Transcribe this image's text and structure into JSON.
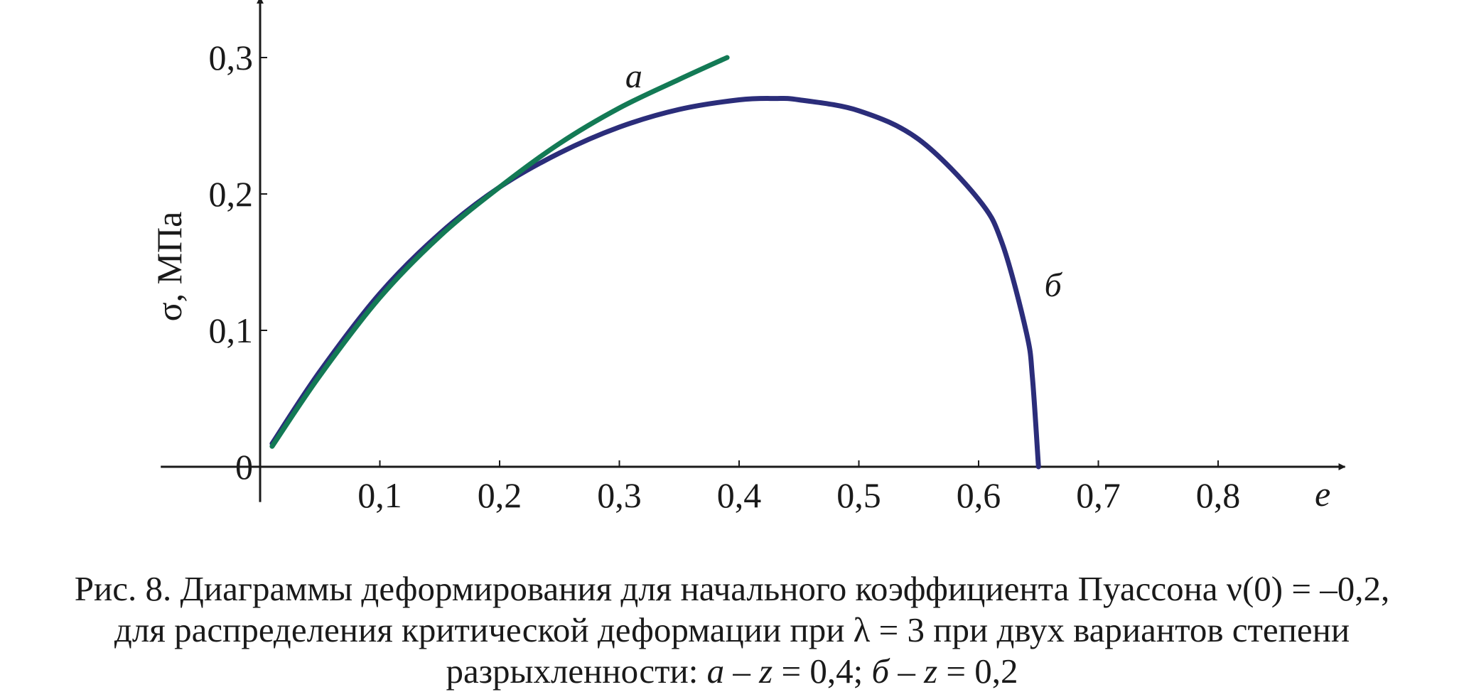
{
  "chart_data": {
    "type": "line",
    "xlabel": "e",
    "ylabel": "σ, МПа",
    "xlim": [
      -0.08,
      0.9
    ],
    "ylim": [
      -0.03,
      0.34
    ],
    "x_ticks": [
      0.1,
      0.2,
      0.3,
      0.4,
      0.5,
      0.6,
      0.7,
      0.8
    ],
    "x_tick_labels": [
      "0,1",
      "0,2",
      "0,3",
      "0,4",
      "0,5",
      "0,6",
      "0,7",
      "0,8"
    ],
    "y_ticks": [
      0,
      0.1,
      0.2,
      0.3
    ],
    "y_tick_labels": [
      "0",
      "0,1",
      "0,2",
      "0,3"
    ],
    "grid": false,
    "series": [
      {
        "name": "а",
        "color": "#137a55",
        "x": [
          0.01,
          0.05,
          0.1,
          0.15,
          0.2,
          0.25,
          0.3,
          0.35,
          0.39
        ],
        "y": [
          0.015,
          0.067,
          0.124,
          0.169,
          0.205,
          0.237,
          0.263,
          0.284,
          0.3
        ]
      },
      {
        "name": "б",
        "color": "#2b2d7a",
        "x": [
          0.01,
          0.05,
          0.1,
          0.15,
          0.2,
          0.25,
          0.3,
          0.35,
          0.4,
          0.43,
          0.45,
          0.5,
          0.55,
          0.6,
          0.62,
          0.64,
          0.645,
          0.65
        ],
        "y": [
          0.017,
          0.07,
          0.127,
          0.171,
          0.205,
          0.23,
          0.249,
          0.262,
          0.269,
          0.27,
          0.269,
          0.261,
          0.24,
          0.196,
          0.163,
          0.098,
          0.065,
          0.0
        ]
      }
    ]
  },
  "caption": {
    "line1": "Рис. 8. Диаграммы деформирования для начального коэффициента Пуассона ν(0) = –0,2,",
    "line2": "для распределения критической деформации при λ = 3 при двух вариантов степени",
    "line3_prefix": "разрыхленности: ",
    "line3_a": "а – z",
    "line3_mid": " = 0,4; ",
    "line3_b": "б – z",
    "line3_end": " = 0,2"
  }
}
